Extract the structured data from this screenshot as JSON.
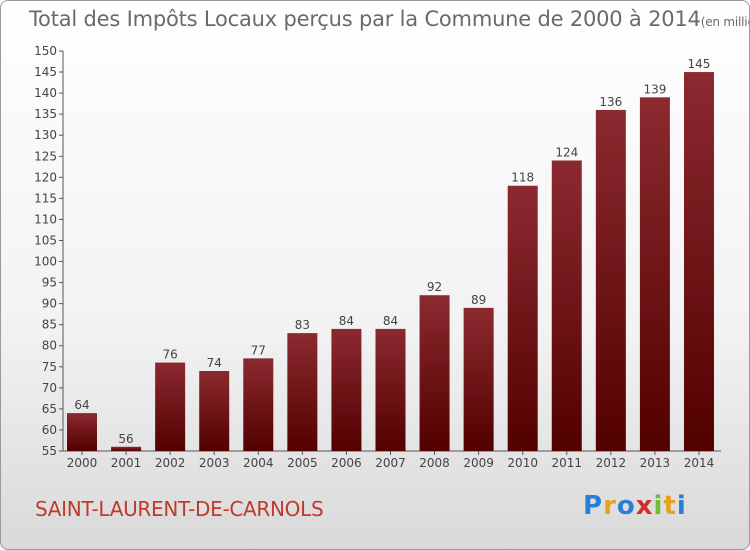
{
  "title": "Total des Impôts Locaux perçus par la Commune de 2000 à 2014",
  "title_unit": "(en milliers d'€)",
  "commune": "SAINT-LAURENT-DE-CARNOLS",
  "logo": {
    "letters": [
      "P",
      "r",
      "o",
      "x",
      "i",
      "t",
      "i"
    ],
    "colors": [
      "#2a7fd4",
      "#e8a020",
      "#2a7fd4",
      "#d03030",
      "#6cbf3a",
      "#e8a020",
      "#2a7fd4"
    ]
  },
  "colors": {
    "bar_top": "#8b2a30",
    "bar_bottom": "#520000",
    "commune_text": "#c0392b"
  },
  "chart_data": {
    "type": "bar",
    "title": "Total des Impôts Locaux perçus par la Commune de 2000 à 2014",
    "ylabel": "en milliers d'€",
    "xlabel": "",
    "categories": [
      "2000",
      "2001",
      "2002",
      "2003",
      "2004",
      "2005",
      "2006",
      "2007",
      "2008",
      "2009",
      "2010",
      "2011",
      "2012",
      "2013",
      "2014"
    ],
    "values": [
      64,
      56,
      76,
      74,
      77,
      83,
      84,
      84,
      92,
      89,
      118,
      124,
      136,
      139,
      145
    ],
    "ylim": [
      55,
      150
    ],
    "yticks": [
      55,
      60,
      65,
      70,
      75,
      80,
      85,
      90,
      95,
      100,
      105,
      110,
      115,
      120,
      125,
      130,
      135,
      140,
      145,
      150
    ],
    "grid": false
  }
}
